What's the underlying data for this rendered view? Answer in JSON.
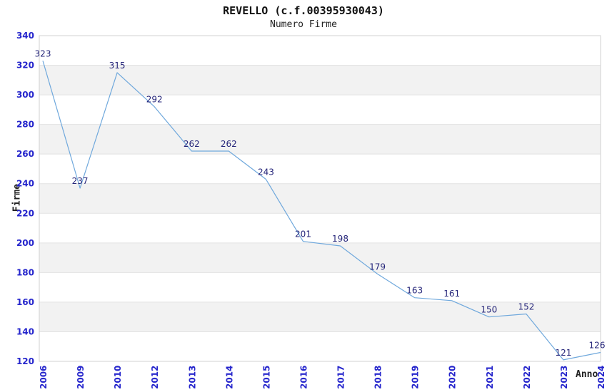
{
  "page": {
    "background": "#ffffff"
  },
  "chart_data": {
    "type": "line",
    "title": "REVELLO (c.f.00395930043)",
    "subtitle": "Numero Firme",
    "xlabel": "Anno",
    "ylabel": "Firme",
    "categories": [
      "2006",
      "2009",
      "2010",
      "2012",
      "2013",
      "2014",
      "2015",
      "2016",
      "2017",
      "2018",
      "2019",
      "2020",
      "2021",
      "2022",
      "2023",
      "2024"
    ],
    "values": [
      323,
      237,
      315,
      292,
      262,
      262,
      243,
      201,
      198,
      179,
      163,
      161,
      150,
      152,
      121,
      126
    ],
    "ylim": [
      120,
      340
    ],
    "ytick_step": 20,
    "grid": "horizontal",
    "bands": "alternating-horizontal",
    "legend_position": "none",
    "data_labels_visible": true,
    "colors": {
      "line": "#6fa8dc",
      "band_fill": "#f2f2f2",
      "gridline": "#e2e2e2",
      "plot_border": "#d0d0d0",
      "tick_label": "#2525cc",
      "data_label": "#26267a",
      "title_text": "#111111",
      "axis_title_text": "#222222"
    }
  }
}
